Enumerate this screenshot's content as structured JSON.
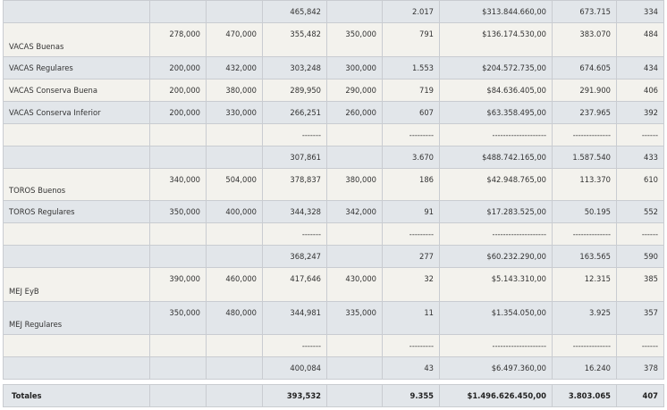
{
  "rows": [
    {
      "style": "a",
      "top": false,
      "h": 25,
      "cells": [
        "",
        "",
        "",
        "465,842",
        "",
        "2.017",
        "$313.844.660,00",
        "673.715",
        "334"
      ]
    },
    {
      "style": "b",
      "top": true,
      "h": 38,
      "cells": [
        "VACAS Buenas",
        "278,000",
        "470,000",
        "355,482",
        "350,000",
        "791",
        "$136.174.530,00",
        "383.070",
        "484"
      ]
    },
    {
      "style": "a",
      "top": false,
      "h": 25,
      "cells": [
        "VACAS Regulares",
        "200,000",
        "432,000",
        "303,248",
        "300,000",
        "1.553",
        "$204.572.735,00",
        "674.605",
        "434"
      ]
    },
    {
      "style": "b",
      "top": false,
      "h": 25,
      "cells": [
        "VACAS Conserva Buena",
        "200,000",
        "380,000",
        "289,950",
        "290,000",
        "719",
        "$84.636.405,00",
        "291.900",
        "406"
      ]
    },
    {
      "style": "a",
      "top": false,
      "h": 25,
      "cells": [
        "VACAS Conserva Inferior",
        "200,000",
        "330,000",
        "266,251",
        "260,000",
        "607",
        "$63.358.495,00",
        "237.965",
        "392"
      ]
    },
    {
      "style": "b",
      "top": false,
      "h": 25,
      "cells": [
        "",
        "",
        "",
        "-------",
        "",
        "---------",
        "--------------------",
        "--------------",
        "------"
      ]
    },
    {
      "style": "a",
      "top": false,
      "h": 25,
      "cells": [
        "",
        "",
        "",
        "307,861",
        "",
        "3.670",
        "$488.742.165,00",
        "1.587.540",
        "433"
      ]
    },
    {
      "style": "b",
      "top": true,
      "h": 36,
      "cells": [
        "TOROS Buenos",
        "340,000",
        "504,000",
        "378,837",
        "380,000",
        "186",
        "$42.948.765,00",
        "113.370",
        "610"
      ]
    },
    {
      "style": "a",
      "top": false,
      "h": 25,
      "cells": [
        "TOROS Regulares",
        "350,000",
        "400,000",
        "344,328",
        "342,000",
        "91",
        "$17.283.525,00",
        "50.195",
        "552"
      ]
    },
    {
      "style": "b",
      "top": false,
      "h": 25,
      "cells": [
        "",
        "",
        "",
        "-------",
        "",
        "---------",
        "--------------------",
        "--------------",
        "------"
      ]
    },
    {
      "style": "a",
      "top": false,
      "h": 25,
      "cells": [
        "",
        "",
        "",
        "368,247",
        "",
        "277",
        "$60.232.290,00",
        "163.565",
        "590"
      ]
    },
    {
      "style": "b",
      "top": true,
      "h": 38,
      "cells": [
        "MEJ EyB",
        "390,000",
        "460,000",
        "417,646",
        "430,000",
        "32",
        "$5.143.310,00",
        "12.315",
        "385"
      ]
    },
    {
      "style": "a",
      "top": true,
      "h": 37,
      "cells": [
        "MEJ Regulares",
        "350,000",
        "480,000",
        "344,981",
        "335,000",
        "11",
        "$1.354.050,00",
        "3.925",
        "357"
      ]
    },
    {
      "style": "b",
      "top": false,
      "h": 25,
      "cells": [
        "",
        "",
        "",
        "-------",
        "",
        "---------",
        "--------------------",
        "--------------",
        "------"
      ]
    },
    {
      "style": "a",
      "top": false,
      "h": 25,
      "cells": [
        "",
        "",
        "",
        "400,084",
        "",
        "43",
        "$6.497.360,00",
        "16.240",
        "378"
      ]
    }
  ],
  "totals": {
    "cells": [
      "Totales",
      "",
      "",
      "393,532",
      "",
      "9.355",
      "$1.496.626.450,00",
      "3.803.065",
      "407"
    ]
  }
}
